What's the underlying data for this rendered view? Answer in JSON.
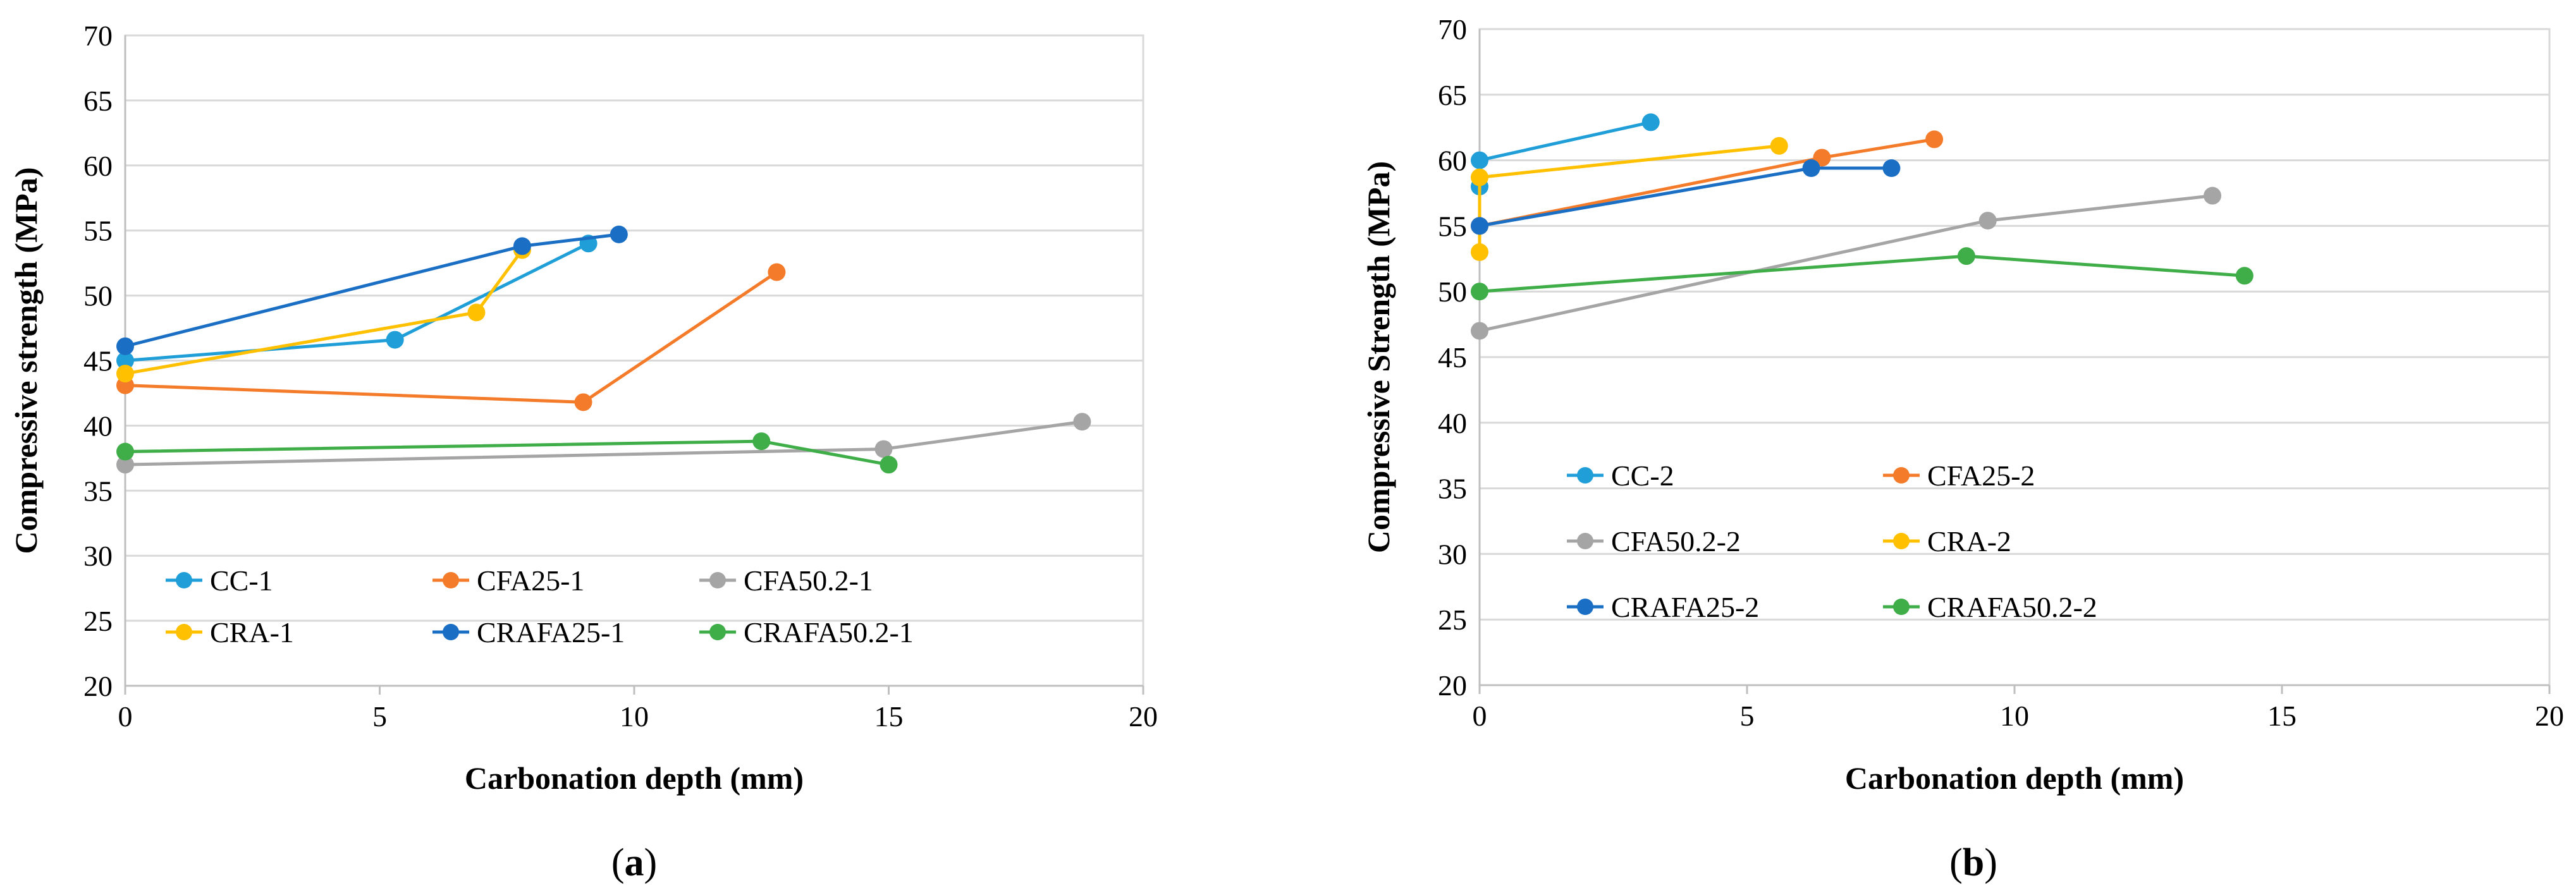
{
  "chart_data": [
    {
      "type": "line",
      "panel_label": "a",
      "xlabel": "Carbonation depth (mm)",
      "ylabel": "Compressive strength (MPa)",
      "xlim": [
        0,
        20
      ],
      "ylim": [
        20,
        70
      ],
      "xticks": [
        "0",
        "5",
        "10",
        "15",
        "20"
      ],
      "yticks": [
        "20",
        "25",
        "30",
        "35",
        "40",
        "45",
        "50",
        "55",
        "60",
        "65",
        "70"
      ],
      "grid": "horizontal",
      "legend_position": "bottom-left inside plot",
      "series": [
        {
          "name": "CC-1",
          "color": "#1f9ed8",
          "points": [
            [
              0,
              45
            ],
            [
              5.3,
              46.6
            ],
            [
              9.1,
              54
            ]
          ]
        },
        {
          "name": "CFA25-1",
          "color": "#f47b2a",
          "points": [
            [
              0,
              43.1
            ],
            [
              9,
              41.8
            ],
            [
              12.8,
              51.8
            ]
          ]
        },
        {
          "name": "CFA50.2-1",
          "color": "#a5a5a5",
          "points": [
            [
              0,
              37
            ],
            [
              14.9,
              38.2
            ],
            [
              18.8,
              40.3
            ]
          ]
        },
        {
          "name": "CRA-1",
          "color": "#ffc000",
          "points": [
            [
              0,
              44
            ],
            [
              6.9,
              48.7
            ],
            [
              7.8,
              53.5
            ]
          ]
        },
        {
          "name": "CRAFA25-1",
          "color": "#1a6fc4",
          "points": [
            [
              0,
              46.1
            ],
            [
              7.8,
              53.8
            ],
            [
              9.7,
              54.7
            ]
          ]
        },
        {
          "name": "CRAFA50.2-1",
          "color": "#3fae49",
          "points": [
            [
              0,
              38
            ],
            [
              12.5,
              38.8
            ],
            [
              15,
              37
            ]
          ]
        }
      ]
    },
    {
      "type": "line",
      "panel_label": "b",
      "xlabel": "Carbonation depth (mm)",
      "ylabel": "Compressive Strength (MPa)",
      "xlim": [
        0,
        20
      ],
      "ylim": [
        20,
        70
      ],
      "xticks": [
        "0",
        "5",
        "10",
        "15",
        "20"
      ],
      "yticks": [
        "20",
        "25",
        "30",
        "35",
        "40",
        "45",
        "50",
        "55",
        "60",
        "65",
        "70"
      ],
      "grid": "horizontal",
      "legend_position": "left-middle inside plot",
      "series": [
        {
          "name": "CC-2",
          "color": "#1f9ed8",
          "points": [
            [
              0,
              58
            ],
            [
              0,
              60
            ],
            [
              3.2,
              62.9
            ]
          ]
        },
        {
          "name": "CFA25-2",
          "color": "#f47b2a",
          "points": [
            [
              0,
              55
            ],
            [
              6.4,
              60.2
            ],
            [
              8.5,
              61.6
            ]
          ]
        },
        {
          "name": "CFA50.2-2",
          "color": "#a5a5a5",
          "points": [
            [
              0,
              47
            ],
            [
              9.5,
              55.4
            ],
            [
              13.7,
              57.3
            ]
          ]
        },
        {
          "name": "CRA-2",
          "color": "#ffc000",
          "points": [
            [
              0,
              53
            ],
            [
              0,
              58.7
            ],
            [
              5.6,
              61.1
            ]
          ]
        },
        {
          "name": "CRAFA25-2",
          "color": "#1a6fc4",
          "points": [
            [
              0,
              55
            ],
            [
              6.2,
              59.4
            ],
            [
              7.7,
              59.4
            ]
          ]
        },
        {
          "name": "CRAFA50.2-2",
          "color": "#3fae49",
          "points": [
            [
              0,
              50
            ],
            [
              9.1,
              52.7
            ],
            [
              14.3,
              51.2
            ]
          ]
        }
      ]
    }
  ]
}
